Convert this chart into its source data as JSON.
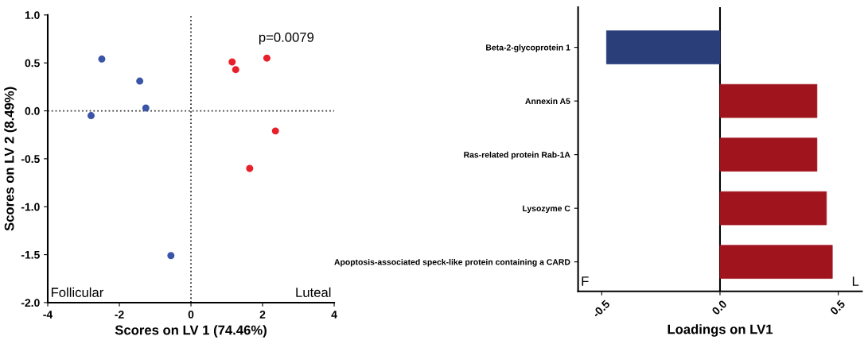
{
  "chart_data": [
    {
      "type": "scatter",
      "xlabel": "Scores on LV 1 (74.46%)",
      "ylabel": "Scores on LV 2 (8.49%)",
      "xlim": [
        -4,
        4
      ],
      "xticks": [
        -4,
        -2,
        0,
        2,
        4
      ],
      "ylim": [
        -2.0,
        1.0
      ],
      "yticks": [
        {
          "value": -2.0,
          "label": "-2.0"
        },
        {
          "value": -1.5,
          "label": "-1.5"
        },
        {
          "value": -1.0,
          "label": "-1.0"
        },
        {
          "value": -0.5,
          "label": "-0.5"
        },
        {
          "value": 0.0,
          "label": "0.0"
        },
        {
          "value": 0.5,
          "label": "0.5"
        },
        {
          "value": 1.0,
          "label": "1.0"
        }
      ],
      "series": [
        {
          "color": "#3a55a8",
          "x": [
            -2.49,
            -1.43,
            -1.26,
            -2.79,
            -0.56
          ],
          "values": [
            0.54,
            0.31,
            0.03,
            -0.05,
            -1.51
          ]
        },
        {
          "color": "#e8202a",
          "x": [
            1.15,
            1.25,
            2.12,
            2.36,
            1.64
          ],
          "values": [
            0.51,
            0.43,
            0.55,
            -0.21,
            -0.6
          ]
        }
      ],
      "marker": "circle",
      "grid": false,
      "legend": false,
      "ref_lines": [
        {
          "axis": "x",
          "value": 0,
          "line_style": "dotted",
          "color": "#333333"
        },
        {
          "axis": "y",
          "value": 0,
          "line_style": "dotted",
          "color": "#333333"
        }
      ],
      "annotations": [
        "p=0.0079",
        "Follicular",
        "Luteal"
      ]
    },
    {
      "type": "bar",
      "orientation": "horizontal",
      "xlabel": "Loadings on LV1",
      "categories": [
        "Beta-2-glycoprotein 1",
        "Annexin A5",
        "Ras-related protein Rab-1A",
        "Lysozyme C",
        "Apoptosis-associated speck-like protein containing a CARD"
      ],
      "values": [
        -0.48,
        0.41,
        0.41,
        0.45,
        0.475
      ],
      "colors": [
        "#2a3f7a",
        "#a0141e",
        "#a0141e",
        "#a0141e",
        "#a0141e"
      ],
      "xlim": [
        -0.6,
        0.6
      ],
      "xticks": [
        {
          "value": -0.5,
          "label": "-0.5"
        },
        {
          "value": 0.0,
          "label": "0.0"
        },
        {
          "value": 0.5,
          "label": "0.5"
        }
      ],
      "grid": false,
      "legend": false,
      "ref_lines": [
        {
          "axis": "x",
          "value": 0,
          "line_style": "solid",
          "color": "#000000"
        }
      ],
      "annotations": [
        "F",
        "L"
      ]
    }
  ]
}
